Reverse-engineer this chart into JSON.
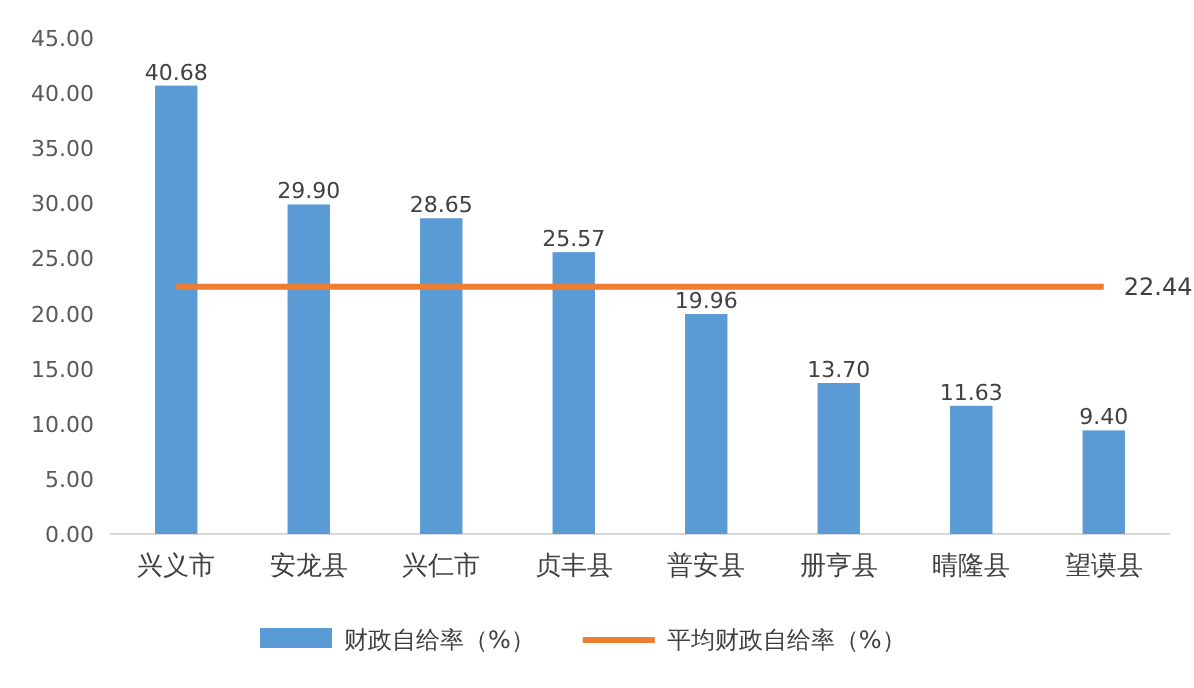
{
  "chart_data": {
    "type": "bar",
    "categories": [
      "兴义市",
      "安龙县",
      "兴仁市",
      "贞丰县",
      "普安县",
      "册亨县",
      "晴隆县",
      "望谟县"
    ],
    "series": [
      {
        "name": "财政自给率（%）",
        "color": "#5b9bd5",
        "values": [
          40.68,
          29.9,
          28.65,
          25.57,
          19.96,
          13.7,
          11.63,
          9.4
        ],
        "value_labels": [
          "40.68",
          "29.90",
          "28.65",
          "25.57",
          "19.96",
          "13.70",
          "11.63",
          "9.40"
        ]
      },
      {
        "name": "平均财政自给率（%）",
        "type": "line",
        "color": "#ed7d31",
        "values": [
          22.44,
          22.44,
          22.44,
          22.44,
          22.44,
          22.44,
          22.44,
          22.44
        ],
        "value_labels": [
          null,
          null,
          null,
          null,
          null,
          null,
          null,
          "22.44"
        ]
      }
    ],
    "ylim": [
      0,
      45
    ],
    "yticks": [
      {
        "value": 0,
        "label": "0.00"
      },
      {
        "value": 5,
        "label": "5.00"
      },
      {
        "value": 10,
        "label": "10.00"
      },
      {
        "value": 15,
        "label": "15.00"
      },
      {
        "value": 20,
        "label": "20.00"
      },
      {
        "value": 25,
        "label": "25.00"
      },
      {
        "value": 30,
        "label": "30.00"
      },
      {
        "value": 35,
        "label": "35.00"
      },
      {
        "value": 40,
        "label": "40.00"
      },
      {
        "value": 45,
        "label": "45.00"
      }
    ],
    "legend": "bottom",
    "grid": false
  }
}
